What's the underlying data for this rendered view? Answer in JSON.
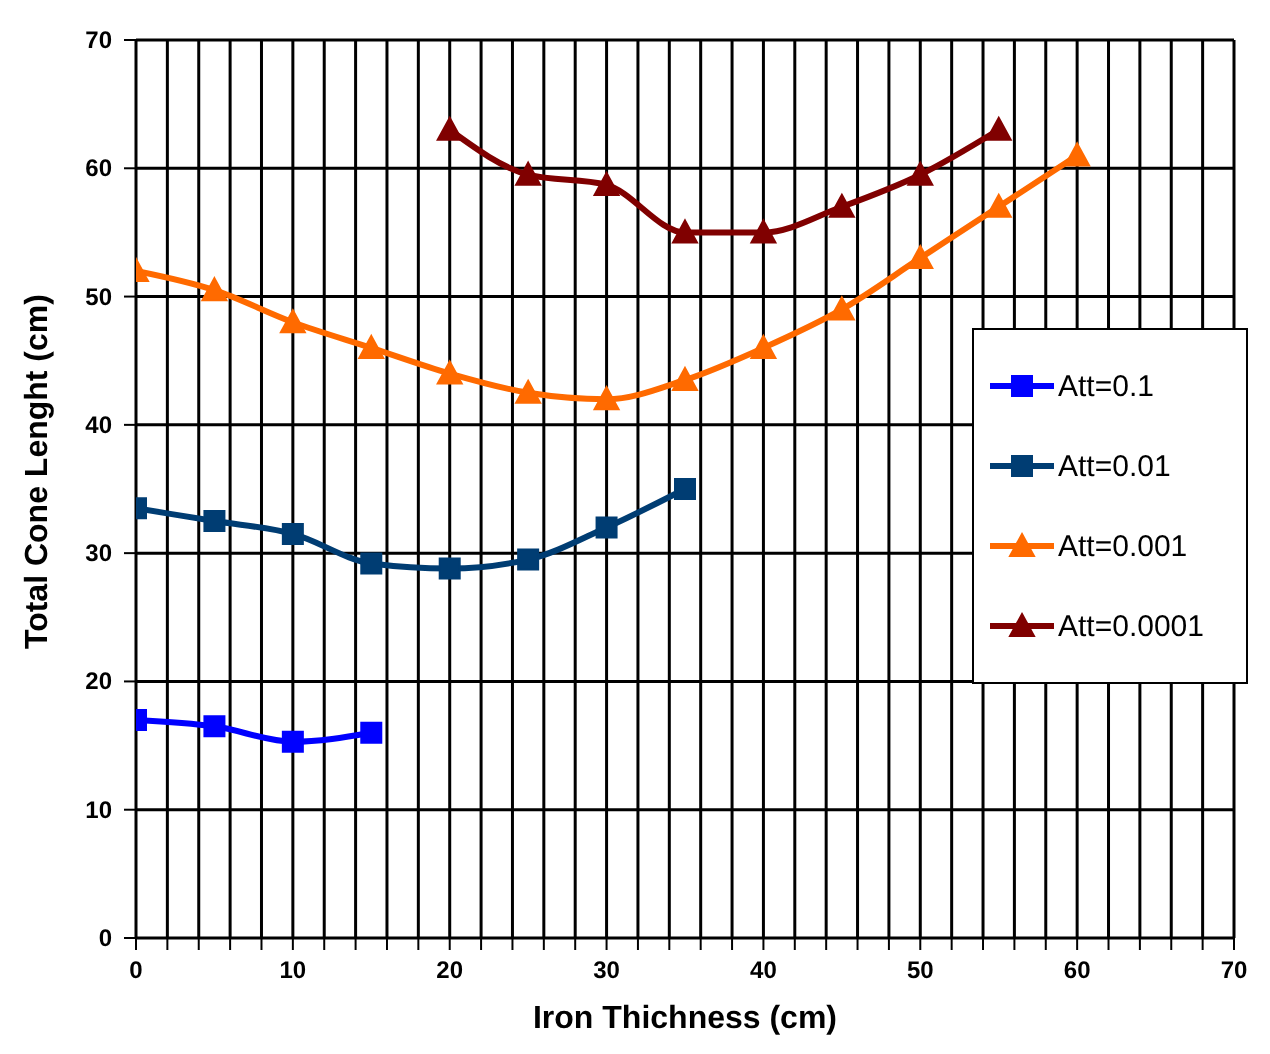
{
  "chart_data": {
    "type": "line",
    "xlabel": "Iron Thichness (cm)",
    "ylabel": "Total Cone Lenght (cm)",
    "xlim": [
      0,
      70
    ],
    "ylim": [
      0,
      70
    ],
    "xticks": [
      0,
      {
        "value": 2,
        "label": null
      },
      {
        "value": 4,
        "label": null
      },
      {
        "value": 6,
        "label": null
      },
      {
        "value": 8,
        "label": null
      },
      10,
      {
        "value": 12,
        "label": null
      },
      {
        "value": 14,
        "label": null
      },
      {
        "value": 16,
        "label": null
      },
      {
        "value": 18,
        "label": null
      },
      20,
      {
        "value": 22,
        "label": null
      },
      {
        "value": 24,
        "label": null
      },
      {
        "value": 26,
        "label": null
      },
      {
        "value": 28,
        "label": null
      },
      30,
      {
        "value": 32,
        "label": null
      },
      {
        "value": 34,
        "label": null
      },
      {
        "value": 36,
        "label": null
      },
      {
        "value": 38,
        "label": null
      },
      40,
      {
        "value": 42,
        "label": null
      },
      {
        "value": 44,
        "label": null
      },
      {
        "value": 46,
        "label": null
      },
      {
        "value": 48,
        "label": null
      },
      50,
      {
        "value": 52,
        "label": null
      },
      {
        "value": 54,
        "label": null
      },
      {
        "value": 56,
        "label": null
      },
      {
        "value": 58,
        "label": null
      },
      60,
      {
        "value": 62,
        "label": null
      },
      {
        "value": 64,
        "label": null
      },
      {
        "value": 66,
        "label": null
      },
      {
        "value": 68,
        "label": null
      },
      70
    ],
    "yticks": [
      0,
      10,
      20,
      30,
      40,
      50,
      60,
      70
    ],
    "grid": true,
    "legend": "right",
    "series": [
      {
        "name": "Att=0.1",
        "color": "#0000ff",
        "marker": "square",
        "x": [
          0,
          5,
          10,
          15
        ],
        "values": [
          17,
          16.5,
          15.3,
          16
        ]
      },
      {
        "name": "Att=0.01",
        "color": "#003d73",
        "marker": "square",
        "x": [
          0,
          5,
          10,
          15,
          20,
          25,
          30,
          35
        ],
        "values": [
          33.5,
          32.5,
          31.5,
          29.2,
          28.8,
          29.5,
          32,
          35
        ]
      },
      {
        "name": "Att=0.001",
        "color": "#ff6a00",
        "marker": "triangle",
        "x": [
          0,
          5,
          10,
          15,
          20,
          25,
          30,
          35,
          40,
          45,
          50,
          55,
          60
        ],
        "values": [
          52,
          50.5,
          48,
          46,
          44,
          42.5,
          42,
          43.5,
          46,
          49,
          53,
          57,
          61
        ]
      },
      {
        "name": "Att=0.0001",
        "color": "#800000",
        "marker": "triangle",
        "x": [
          20,
          25,
          30,
          35,
          40,
          45,
          50,
          55
        ],
        "values": [
          63,
          59.5,
          58.7,
          55,
          55,
          57,
          59.5,
          63
        ]
      }
    ]
  }
}
